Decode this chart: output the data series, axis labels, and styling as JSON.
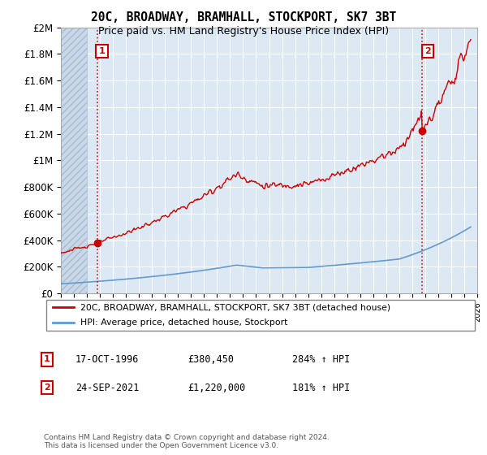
{
  "title": "20C, BROADWAY, BRAMHALL, STOCKPORT, SK7 3BT",
  "subtitle": "Price paid vs. HM Land Registry's House Price Index (HPI)",
  "hpi_label": "HPI: Average price, detached house, Stockport",
  "property_label": "20C, BROADWAY, BRAMHALL, STOCKPORT, SK7 3BT (detached house)",
  "sale1_date": "17-OCT-1996",
  "sale1_price": 380450,
  "sale1_hpi_text": "284% ↑ HPI",
  "sale1_x": 1996.8,
  "sale2_date": "24-SEP-2021",
  "sale2_price": 1220000,
  "sale2_hpi_text": "181% ↑ HPI",
  "sale2_x": 2021.75,
  "property_color": "#cc0000",
  "hpi_color": "#6699cc",
  "bg_color": "#dce9f5",
  "footnote": "Contains HM Land Registry data © Crown copyright and database right 2024.\nThis data is licensed under the Open Government Licence v3.0.",
  "ylim": [
    0,
    2000000
  ],
  "xstart": 1994,
  "xend": 2026,
  "yticks": [
    0,
    200000,
    400000,
    600000,
    800000,
    1000000,
    1200000,
    1400000,
    1600000,
    1800000,
    2000000
  ],
  "ylabels": [
    "£0",
    "£200K",
    "£400K",
    "£600K",
    "£800K",
    "£1M",
    "£1.2M",
    "£1.4M",
    "£1.6M",
    "£1.8M",
    "£2M"
  ]
}
